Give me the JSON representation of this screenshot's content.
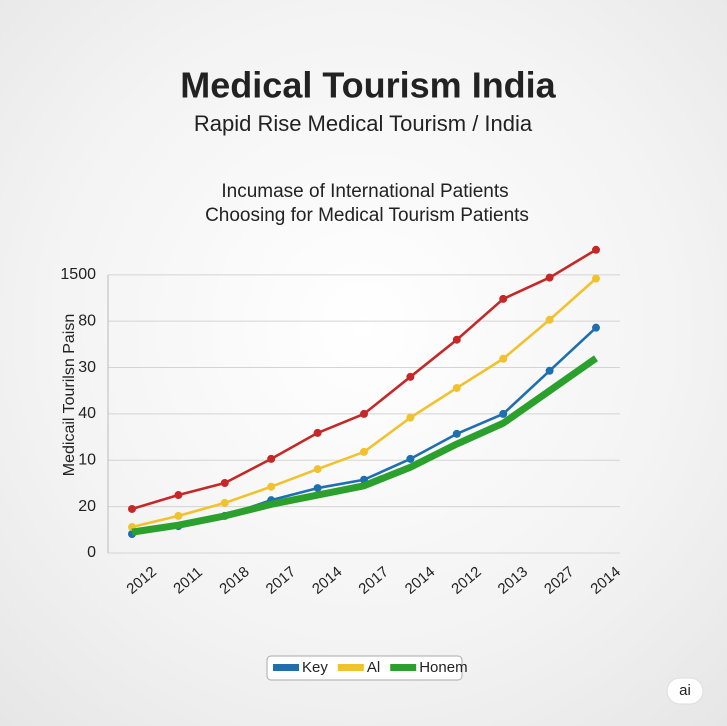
{
  "chart_data": {
    "type": "line",
    "title": "Medical Tourism India",
    "subtitle": "Rapid Rise Medical Tourism / India",
    "chart_title": [
      "Incumase of International Patients",
      "Choosing for Medical Tourism Patients"
    ],
    "y_label": "Medicail Tourilsn Paisn",
    "categories": [
      "2012",
      "2011",
      "2018",
      "2017",
      "2014",
      "2017",
      "2014",
      "2012",
      "2013",
      "2027",
      "2014"
    ],
    "series": [
      {
        "color": "#c62828",
        "values": [
          0.95,
          1.25,
          1.51,
          2.03,
          2.59,
          3.0,
          3.8,
          4.6,
          5.48,
          5.94,
          6.54
        ]
      },
      {
        "name": "Key",
        "color": "#1f6fb0",
        "values": [
          0.41,
          0.58,
          0.8,
          1.14,
          1.4,
          1.58,
          2.03,
          2.57,
          3.0,
          3.93,
          4.86
        ]
      },
      {
        "name": "Al",
        "color": "#f2c12e",
        "values": [
          0.56,
          0.8,
          1.08,
          1.43,
          1.81,
          2.18,
          2.92,
          3.56,
          4.19,
          5.03,
          5.92
        ]
      },
      {
        "name": "Honem",
        "color": "#2ca02c",
        "values": [
          0.45,
          0.6,
          0.8,
          1.05,
          1.25,
          1.45,
          1.85,
          2.35,
          2.8,
          3.5,
          4.2
        ]
      }
    ],
    "ylim": [
      0,
      6.6
    ],
    "yticks": [
      0,
      {
        "value": 1,
        "label": "20"
      },
      {
        "value": 2,
        "label": "10"
      },
      {
        "value": 3,
        "label": "40"
      },
      {
        "value": 4,
        "label": "30"
      },
      {
        "value": 5,
        "label": "80"
      },
      {
        "value": 6,
        "label": "1500"
      }
    ],
    "grid": true
  },
  "watermark": "ai"
}
